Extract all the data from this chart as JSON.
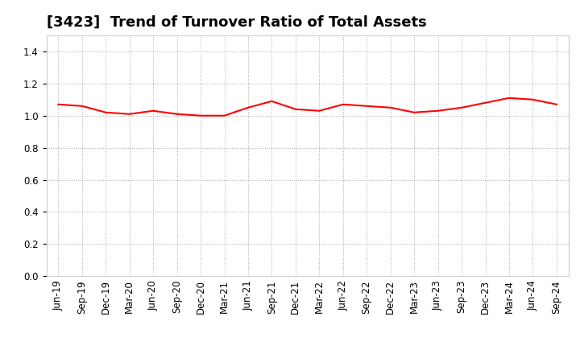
{
  "title": "[3423]  Trend of Turnover Ratio of Total Assets",
  "x_labels": [
    "Jun-19",
    "Sep-19",
    "Dec-19",
    "Mar-20",
    "Jun-20",
    "Sep-20",
    "Dec-20",
    "Mar-21",
    "Jun-21",
    "Sep-21",
    "Dec-21",
    "Mar-22",
    "Jun-22",
    "Sep-22",
    "Dec-22",
    "Mar-23",
    "Jun-23",
    "Sep-23",
    "Dec-23",
    "Mar-24",
    "Jun-24",
    "Sep-24"
  ],
  "y_values": [
    1.07,
    1.06,
    1.02,
    1.01,
    1.03,
    1.01,
    1.0,
    1.0,
    1.05,
    1.09,
    1.04,
    1.03,
    1.07,
    1.06,
    1.05,
    1.02,
    1.03,
    1.05,
    1.08,
    1.11,
    1.1,
    1.07
  ],
  "line_color": "#FF0000",
  "line_width": 1.5,
  "ylim": [
    0.0,
    1.5
  ],
  "yticks": [
    0.0,
    0.2,
    0.4,
    0.6,
    0.8,
    1.0,
    1.2,
    1.4
  ],
  "grid_color": "#AAAAAA",
  "bg_color": "#FFFFFF",
  "title_fontsize": 13,
  "tick_fontsize": 8.5
}
